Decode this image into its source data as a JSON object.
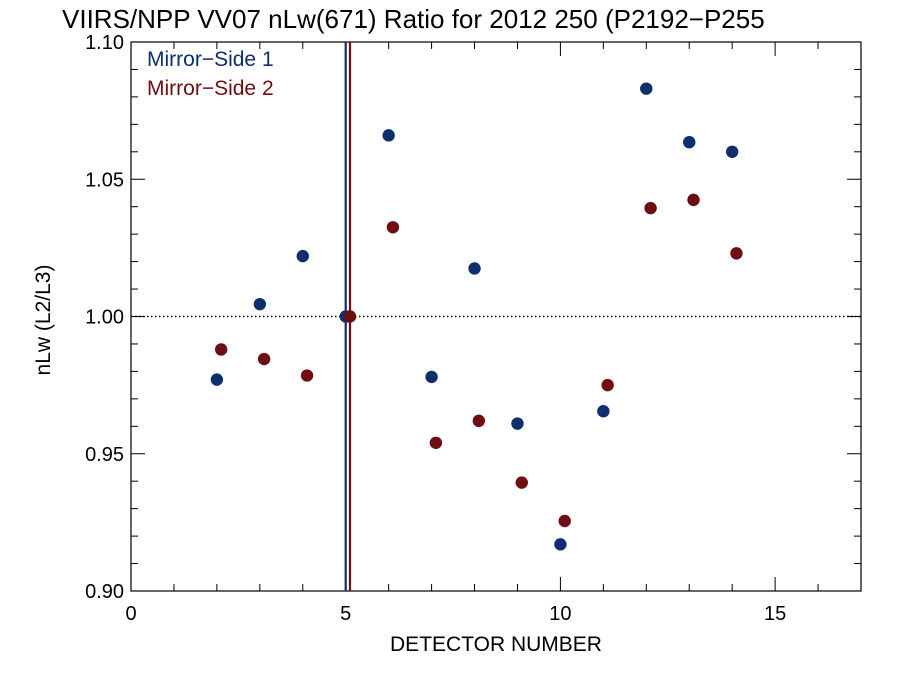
{
  "chart_data": {
    "type": "scatter",
    "title": "VIIRS/NPP VV07 nLw(671) Ratio for 2012 250 (P2192−P255",
    "xlabel": "DETECTOR NUMBER",
    "ylabel": "nLw (L2/L3)",
    "xlim": [
      0,
      17
    ],
    "ylim": [
      0.9,
      1.1
    ],
    "x_ticks": [
      0,
      5,
      10,
      15
    ],
    "x_tick_labels": [
      "0",
      "5",
      "10",
      "15"
    ],
    "y_ticks": [
      0.9,
      0.95,
      1.0,
      1.05,
      1.1
    ],
    "y_tick_labels": [
      "0.90",
      "0.95",
      "1.00",
      "1.05",
      "1.10"
    ],
    "reference_line_y": 1.0,
    "vertical_lines": [
      {
        "x": 5.0,
        "color": "#0d2f6e"
      },
      {
        "x": 5.1,
        "color": "#6e0d12"
      }
    ],
    "grid": false,
    "legend_position": "top-left",
    "series": [
      {
        "name": "Mirror−Side 1",
        "color": "#0d2f6e",
        "x": [
          2,
          3,
          4,
          5,
          6,
          7,
          8,
          9,
          10,
          11,
          12,
          13,
          14
        ],
        "y": [
          0.977,
          1.0045,
          1.022,
          1.0,
          1.066,
          0.978,
          1.0175,
          0.961,
          0.917,
          0.9655,
          1.083,
          1.0635,
          1.06
        ]
      },
      {
        "name": "Mirror−Side 2",
        "color": "#6e0d12",
        "x": [
          2.1,
          3.1,
          4.1,
          5.1,
          6.1,
          7.1,
          8.1,
          9.1,
          10.1,
          11.1,
          12.1,
          13.1,
          14.1
        ],
        "y": [
          0.988,
          0.9845,
          0.9785,
          1.0,
          1.0325,
          0.954,
          0.962,
          0.9395,
          0.9255,
          0.975,
          1.0395,
          1.0425,
          1.023
        ]
      }
    ]
  }
}
